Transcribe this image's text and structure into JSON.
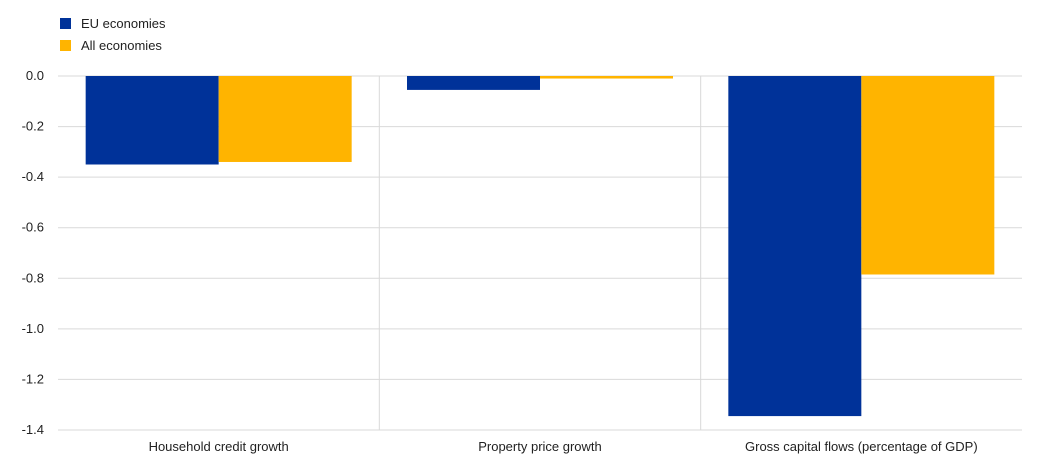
{
  "chart_data": {
    "type": "bar",
    "categories": [
      "Household credit growth",
      "Property price growth",
      "Gross capital flows (percentage of GDP)"
    ],
    "series": [
      {
        "name": "EU economies",
        "color": "#003299",
        "values": [
          -0.35,
          -0.055,
          -1.345
        ]
      },
      {
        "name": "All economies",
        "color": "#FFB400",
        "values": [
          -0.34,
          -0.01,
          -0.785
        ]
      }
    ],
    "ylim": [
      -1.4,
      0.0
    ],
    "yticks": [
      "0.0",
      "-0.2",
      "-0.4",
      "-0.6",
      "-0.8",
      "-1.0",
      "-1.2",
      "-1.4"
    ],
    "ytick_values": [
      0.0,
      -0.2,
      -0.4,
      -0.6,
      -0.8,
      -1.0,
      -1.2,
      -1.4
    ],
    "grid": true,
    "legend_position": "top-left"
  }
}
